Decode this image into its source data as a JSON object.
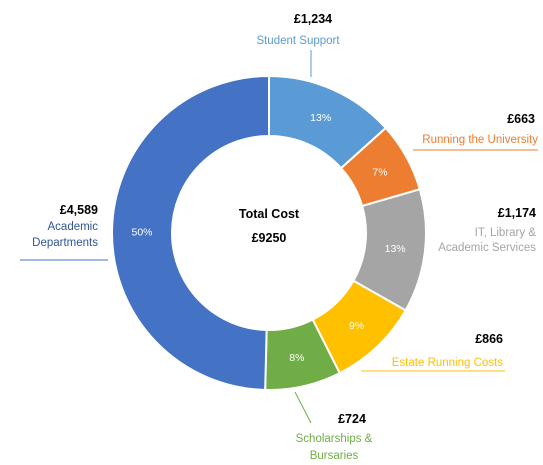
{
  "chart_data": {
    "type": "pie",
    "center_title": "Total Cost",
    "center_total": "£9250",
    "slices": [
      {
        "name": "Student Support",
        "amount": "£1,234",
        "value": 1234,
        "pct": "13%",
        "color": "#5B9BD5"
      },
      {
        "name": "Running the University",
        "amount": "£663",
        "value": 663,
        "pct": "7%",
        "color": "#ED7D31"
      },
      {
        "name": "IT, Library & Academic Services",
        "amount": "£1,174",
        "value": 1174,
        "pct": "13%",
        "color": "#A5A5A5"
      },
      {
        "name": "Estate Running Costs",
        "amount": "£866",
        "value": 866,
        "pct": "9%",
        "color": "#FFC000"
      },
      {
        "name": "Scholarships & Bursaries",
        "amount": "£724",
        "value": 724,
        "pct": "8%",
        "color": "#70AD47"
      },
      {
        "name": "Academic Departments",
        "amount": "£4,589",
        "value": 4589,
        "pct": "50%",
        "color": "#4472C4"
      }
    ]
  }
}
